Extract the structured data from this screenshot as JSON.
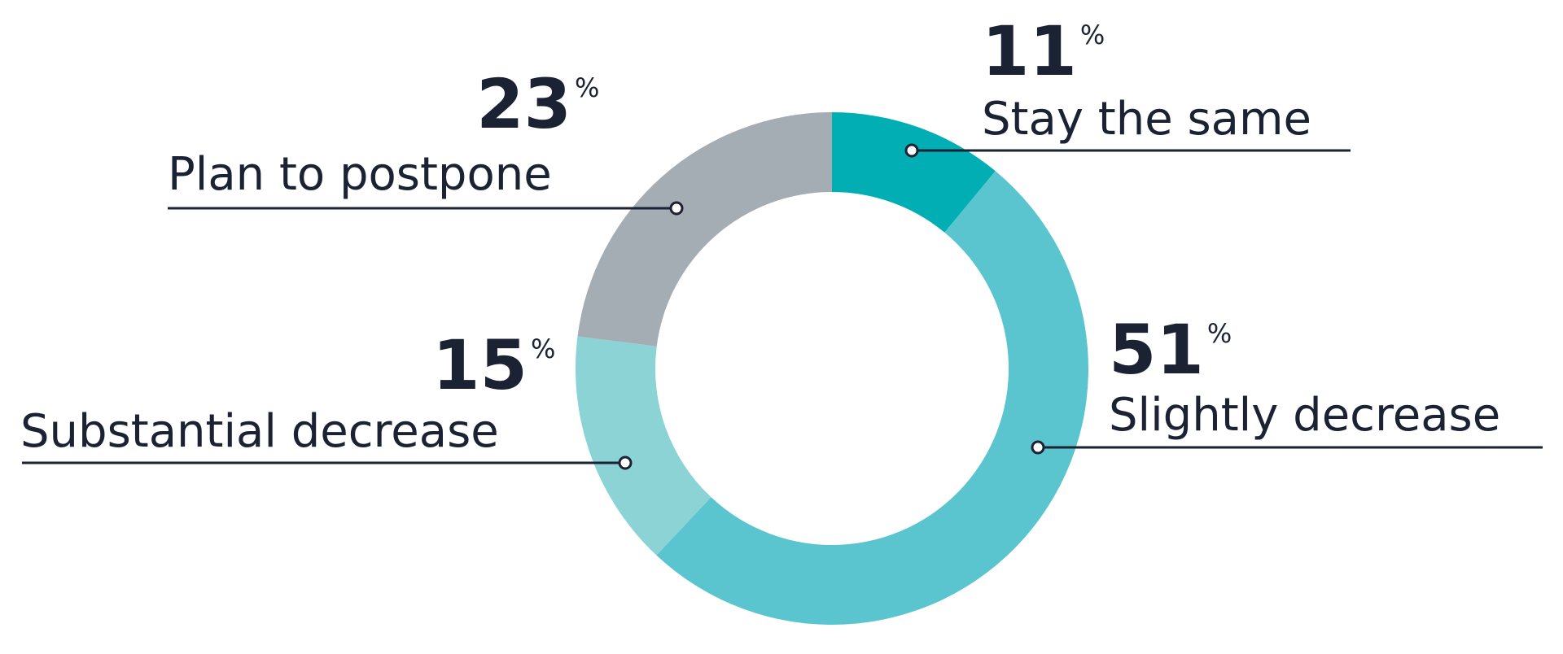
{
  "chart_data": {
    "type": "pie",
    "donut": true,
    "categories": [
      "Stay the same",
      "Slightly decrease",
      "Substantial decrease",
      "Plan to postpone"
    ],
    "values": [
      11,
      51,
      15,
      23
    ],
    "unit": "%",
    "colors": [
      "#00aeb3",
      "#5bc5cf",
      "#8bd3d5",
      "#a5adb4"
    ]
  }
}
